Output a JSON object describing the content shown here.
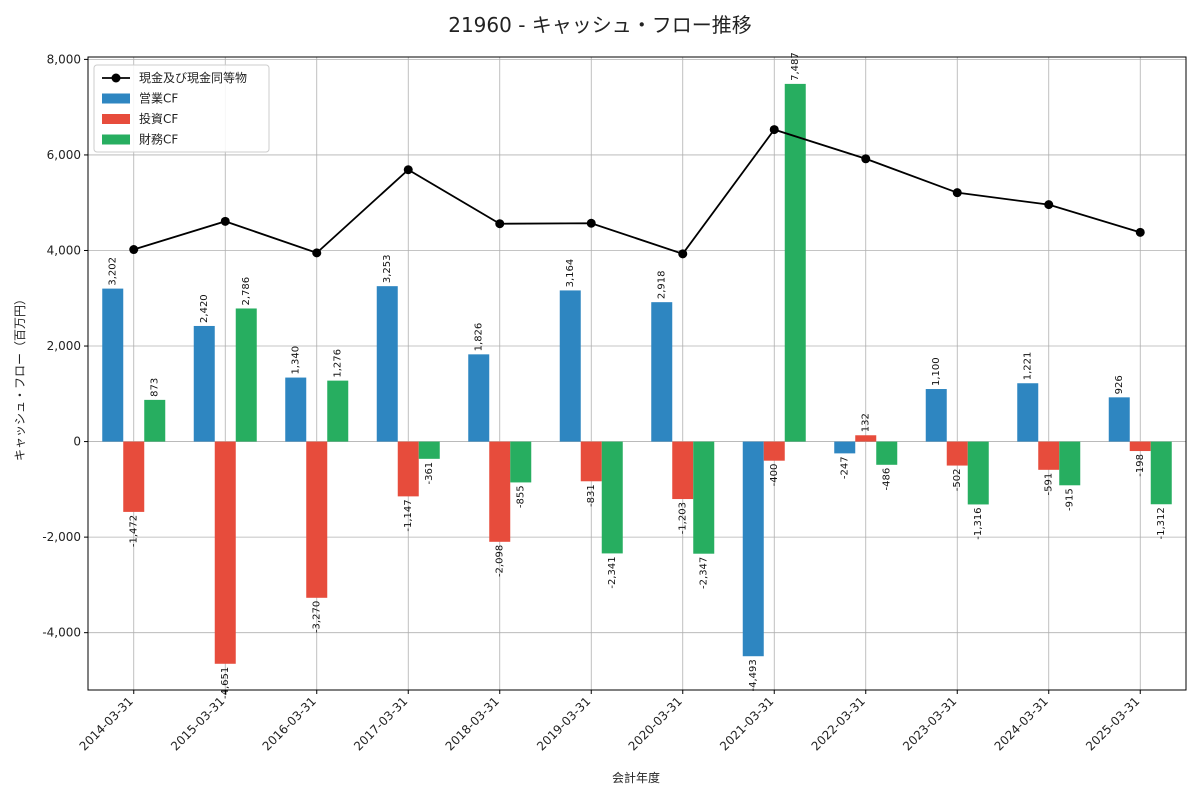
{
  "chart_data": {
    "type": "bar",
    "title": "21960 - キャッシュ・フロー推移",
    "xlabel": "会計年度",
    "ylabel": "キャッシュ・フロー（百万円）",
    "categories": [
      "2014-03-31",
      "2015-03-31",
      "2016-03-31",
      "2017-03-31",
      "2018-03-31",
      "2019-03-31",
      "2020-03-31",
      "2021-03-31",
      "2022-03-31",
      "2023-03-31",
      "2024-03-31",
      "2025-03-31"
    ],
    "ylim": [
      -5200,
      8050
    ],
    "yticks": [
      -4000,
      -2000,
      0,
      2000,
      4000,
      6000,
      8000
    ],
    "ytick_labels": [
      "-4,000",
      "-2,000",
      "0",
      "2,000",
      "4,000",
      "6,000",
      "8,000"
    ],
    "grid": true,
    "legend_position": "top-left",
    "series": [
      {
        "name": "営業CF",
        "kind": "bar",
        "color": "#2E86C1",
        "values": [
          3202,
          2420,
          1340,
          3253,
          1826,
          3164,
          2918,
          -4493,
          -247,
          1100,
          1221,
          926
        ],
        "labels": [
          "3,202",
          "2,420",
          "1,340",
          "3,253",
          "1,826",
          "3,164",
          "2,918",
          "-4,493",
          "-247",
          "1,100",
          "1,221",
          "926"
        ]
      },
      {
        "name": "投資CF",
        "kind": "bar",
        "color": "#E74C3C",
        "values": [
          -1472,
          -4651,
          -3270,
          -1147,
          -2098,
          -831,
          -1203,
          -400,
          132,
          -502,
          -591,
          -198
        ],
        "labels": [
          "-1,472",
          "-4,651",
          "-3,270",
          "-1,147",
          "-2,098",
          "-831",
          "-1,203",
          "-400",
          "132",
          "-502",
          "-591",
          "-198"
        ]
      },
      {
        "name": "財務CF",
        "kind": "bar",
        "color": "#27AE60",
        "values": [
          873,
          2786,
          1276,
          -361,
          -855,
          -2341,
          -2347,
          7487,
          -486,
          -1316,
          -915,
          -1312
        ],
        "labels": [
          "873",
          "2,786",
          "1,276",
          "-361",
          "-855",
          "-2,341",
          "-2,347",
          "7,487",
          "-486",
          "-1,316",
          "-915",
          "-1,312"
        ]
      },
      {
        "name": "現金及び現金同等物",
        "kind": "line",
        "color": "#000000",
        "values": [
          4020,
          4610,
          3950,
          5690,
          4560,
          4570,
          3930,
          6530,
          5920,
          5210,
          4960,
          4380
        ]
      }
    ]
  }
}
